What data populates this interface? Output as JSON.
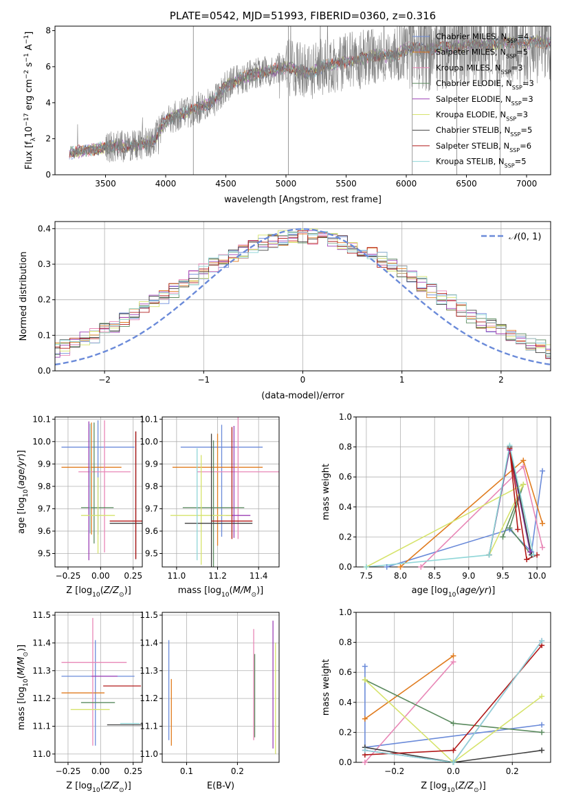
{
  "colors": [
    "#6a8ad9",
    "#e07b1e",
    "#e886b6",
    "#5a8a5e",
    "#9b3fb5",
    "#d6e36b",
    "#3f3f3f",
    "#b01818",
    "#8fd6d8"
  ],
  "spectrum_color": "#808080",
  "chart_data": [
    {
      "id": "spectrum",
      "type": "line",
      "title": "PLATE=0542, MJD=51993, FIBERID=0360, z=0.316",
      "xlabel": "wavelength [Angstrom, rest frame]",
      "ylabel": "Flux [f_λ10^-17 erg cm^-2 s^-1 A^-1]",
      "xlim": [
        3080,
        7200
      ],
      "ylim": [
        0,
        8.25
      ],
      "xticks": [
        3500,
        4000,
        4500,
        5000,
        5500,
        6000,
        6500,
        7000
      ],
      "yticks": [
        0,
        2,
        4,
        6,
        8
      ],
      "grid": false,
      "legend_position": "top-right",
      "legend": [
        "Chabrier MILES, N_SSP=4",
        "Salpeter MILES, N_SSP=5",
        "Kroupa MILES, N_SSP=3",
        "Chabrier ELODIE, N_SSP=3",
        "Salpeter ELODIE, N_SSP=3",
        "Kroupa ELODIE, N_SSP=3",
        "Chabrier STELIB, N_SSP=5",
        "Salpeter STELIB, N_SSP=6",
        "Kroupa STELIB, N_SSP=5"
      ],
      "continuum": {
        "x": [
          3200,
          3400,
          3500,
          3700,
          3800,
          3900,
          4000,
          4100,
          4200,
          4300,
          4400,
          4500,
          4600,
          4700,
          4800,
          4900,
          5000,
          5100,
          5200,
          5300,
          5400,
          5500,
          5600,
          5700,
          5800,
          5900,
          6000,
          6100,
          6200,
          6300,
          6400,
          6500,
          6600,
          6700,
          6800,
          6900,
          7000,
          7100,
          7200
        ],
        "y": [
          1.2,
          1.4,
          1.55,
          1.6,
          1.7,
          1.9,
          3.0,
          3.3,
          3.5,
          3.8,
          4.1,
          4.9,
          5.3,
          5.5,
          5.7,
          5.8,
          6.0,
          5.8,
          5.6,
          6.0,
          6.1,
          6.3,
          6.4,
          6.6,
          6.6,
          6.6,
          7.0,
          7.0,
          7.0,
          7.1,
          7.1,
          7.2,
          7.2,
          7.2,
          7.3,
          7.4,
          7.3,
          7.4,
          7.3
        ]
      }
    },
    {
      "id": "residuals",
      "type": "histogram",
      "xlabel": "(data-model)/error",
      "ylabel": "Normed distribution",
      "xlim": [
        -2.5,
        2.5
      ],
      "ylim": [
        0,
        0.42
      ],
      "xticks": [
        -2,
        -1,
        0,
        1,
        2
      ],
      "yticks": [
        0.0,
        0.1,
        0.2,
        0.3,
        0.4
      ],
      "grid": true,
      "legend_position": "top-right",
      "legend": [
        "N(0,1)"
      ],
      "bin_width": 0.1,
      "reference": "normal(0,1)"
    },
    {
      "id": "age-vs-Z",
      "type": "errorbar",
      "xlabel": "Z [log10(Z/Z☉)]",
      "ylabel": "age  [log10(age/yr)]",
      "xlim": [
        -0.35,
        0.32
      ],
      "ylim": [
        9.44,
        10.11
      ],
      "xticks": [
        -0.25,
        0.0,
        0.25
      ],
      "yticks": [
        9.5,
        9.6,
        9.7,
        9.8,
        9.9,
        10.0,
        10.1
      ],
      "grid": true,
      "points": [
        {
          "x": -0.02,
          "xerr": [
            0.28,
            0.28
          ],
          "y": 9.975,
          "yerr": [
            0.39,
            0.12
          ]
        },
        {
          "x": -0.07,
          "xerr": [
            0.23,
            0.23
          ],
          "y": 9.885,
          "yerr": [
            0.3,
            0.2
          ]
        },
        {
          "x": 0.03,
          "xerr": [
            0.2,
            0.2
          ],
          "y": 9.865,
          "yerr": [
            0.36,
            0.23
          ]
        },
        {
          "x": -0.05,
          "xerr": [
            0.1,
            0.15
          ],
          "y": 9.705,
          "yerr": [
            0.16,
            0.38
          ]
        },
        {
          "x": -0.09,
          "xerr": [
            0.0,
            0.0
          ],
          "y": 9.67,
          "yerr": [
            0.2,
            0.42
          ]
        },
        {
          "x": -0.02,
          "xerr": [
            0.13,
            0.13
          ],
          "y": 9.67,
          "yerr": [
            0.17,
            0.17
          ]
        },
        {
          "x": 0.27,
          "xerr": [
            0.2,
            0.2
          ],
          "y": 9.635,
          "yerr": [
            0.16,
            0.41
          ]
        },
        {
          "x": 0.27,
          "xerr": [
            0.2,
            0.2
          ],
          "y": 9.645,
          "yerr": [
            0.17,
            0.4
          ]
        },
        {
          "x": -0.08,
          "xerr": [
            0.0,
            0.0
          ],
          "y": 9.72,
          "yerr": [
            0.13,
            0.36
          ]
        }
      ]
    },
    {
      "id": "age-vs-mass",
      "type": "errorbar",
      "xlabel": "mass [log10(M/M☉)]",
      "ylabel": "",
      "xlim": [
        10.93,
        11.5
      ],
      "ylim": [
        9.44,
        10.11
      ],
      "xticks": [
        11.0,
        11.2,
        11.4
      ],
      "yticks": [
        9.5,
        9.6,
        9.7,
        9.8,
        9.9,
        10.0,
        10.1
      ],
      "grid": true,
      "points": [
        {
          "x": 11.22,
          "xerr": [
            0.2,
            0.2
          ],
          "y": 9.975,
          "yerr": [
            0.4,
            0.1
          ]
        },
        {
          "x": 11.2,
          "xerr": [
            0.22,
            0.22
          ],
          "y": 9.885,
          "yerr": [
            0.35,
            0.15
          ]
        },
        {
          "x": 11.3,
          "xerr": [
            0.2,
            0.2
          ],
          "y": 9.865,
          "yerr": [
            0.3,
            0.3
          ]
        },
        {
          "x": 11.18,
          "xerr": [
            0.15,
            0.15
          ],
          "y": 9.705,
          "yerr": [
            0.3,
            0.3
          ]
        },
        {
          "x": 11.28,
          "xerr": [
            0.04,
            0.08
          ],
          "y": 9.67,
          "yerr": [
            0.1,
            0.4
          ]
        },
        {
          "x": 11.12,
          "xerr": [
            0.15,
            0.15
          ],
          "y": 9.67,
          "yerr": [
            0.22,
            0.27
          ]
        },
        {
          "x": 11.17,
          "xerr": [
            0.13,
            0.2
          ],
          "y": 9.635,
          "yerr": [
            0.2,
            0.4
          ]
        },
        {
          "x": 11.27,
          "xerr": [
            0.1,
            0.1
          ],
          "y": 9.645,
          "yerr": [
            0.08,
            0.42
          ]
        },
        {
          "x": 11.1,
          "xerr": [
            0.0,
            0.0
          ],
          "y": 9.72,
          "yerr": [
            0.25,
            0.25
          ]
        }
      ]
    },
    {
      "id": "weight-vs-age",
      "type": "line",
      "xlabel": "age  [log10(age/yr)]",
      "ylabel": "mass weight",
      "xlim": [
        7.35,
        10.2
      ],
      "ylim": [
        0.0,
        1.0
      ],
      "xticks": [
        7.5,
        8.0,
        8.5,
        9.0,
        9.5,
        10.0
      ],
      "yticks": [
        0.0,
        0.2,
        0.4,
        0.6,
        0.8,
        1.0
      ],
      "grid": true,
      "series": [
        {
          "x": [
            7.8,
            9.6,
            9.92,
            10.08
          ],
          "y": [
            0.0,
            0.25,
            0.1,
            0.64
          ]
        },
        {
          "x": [
            8.0,
            9.8,
            10.08
          ],
          "y": [
            0.0,
            0.71,
            0.29
          ]
        },
        {
          "x": [
            8.3,
            9.8,
            10.08
          ],
          "y": [
            0.0,
            0.67,
            0.13
          ]
        },
        {
          "x": [
            9.5,
            9.8,
            9.6,
            9.92
          ],
          "y": [
            0.2,
            0.55,
            0.26,
            0.08
          ]
        },
        {
          "x": [
            9.3,
            9.6,
            9.9
          ],
          "y": [
            0.08,
            0.78,
            0.1
          ]
        },
        {
          "x": [
            7.5,
            9.8,
            9.3
          ],
          "y": [
            0.0,
            0.55,
            0.08
          ]
        },
        {
          "x": [
            9.3,
            9.6,
            9.92
          ],
          "y": [
            0.08,
            0.8,
            0.08
          ]
        },
        {
          "x": [
            9.72,
            9.6,
            9.85,
            10.0
          ],
          "y": [
            0.25,
            0.79,
            0.05,
            0.08
          ]
        },
        {
          "x": [
            7.5,
            9.3,
            9.6,
            9.95
          ],
          "y": [
            0.0,
            0.08,
            0.81,
            0.08
          ]
        }
      ]
    },
    {
      "id": "mass-vs-Z",
      "type": "errorbar",
      "xlabel": "Z [log10(Z/Z☉)]",
      "ylabel": "mass [log10(M/M☉)]",
      "xlim": [
        -0.35,
        0.32
      ],
      "ylim": [
        10.97,
        11.51
      ],
      "xticks": [
        -0.25,
        0.0,
        0.25
      ],
      "yticks": [
        11.0,
        11.1,
        11.2,
        11.3,
        11.4,
        11.5
      ],
      "grid": true,
      "points": [
        {
          "x": -0.04,
          "xerr": [
            0.26,
            0.3
          ],
          "y": 11.28,
          "yerr": [
            0.25,
            0.13
          ]
        },
        {
          "x": -0.12,
          "xerr": [
            0.18,
            0.15
          ],
          "y": 11.22,
          "yerr": [
            0.0,
            0.0
          ]
        },
        {
          "x": -0.06,
          "xerr": [
            0.24,
            0.26
          ],
          "y": 11.33,
          "yerr": [
            0.3,
            0.16
          ]
        },
        {
          "x": -0.02,
          "xerr": [
            0.13,
            0.13
          ],
          "y": 11.185,
          "yerr": [
            0.0,
            0.0
          ]
        },
        {
          "x": 0.03,
          "xerr": [
            0.1,
            0.1
          ],
          "y": 11.28,
          "yerr": [
            0.0,
            0.0
          ]
        },
        {
          "x": -0.08,
          "xerr": [
            0.15,
            0.15
          ],
          "y": 11.16,
          "yerr": [
            0.0,
            0.0
          ]
        },
        {
          "x": 0.25,
          "xerr": [
            0.2,
            0.2
          ],
          "y": 11.105,
          "yerr": [
            0.0,
            0.0
          ]
        },
        {
          "x": 0.14,
          "xerr": [
            0.12,
            0.17
          ],
          "y": 11.245,
          "yerr": [
            0.0,
            0.0
          ]
        },
        {
          "x": 0.25,
          "xerr": [
            0.1,
            0.05
          ],
          "y": 11.11,
          "yerr": [
            0.0,
            0.0
          ]
        }
      ]
    },
    {
      "id": "mass-vs-EBV",
      "type": "errorbar",
      "xlabel": "E(B-V)",
      "ylabel": "",
      "xlim": [
        0.052,
        0.282
      ],
      "ylim": [
        10.97,
        11.51
      ],
      "xticks": [
        0.1,
        0.2
      ],
      "yticks": [
        11.0,
        11.1,
        11.2,
        11.3,
        11.4,
        11.5
      ],
      "grid": true,
      "points": [
        {
          "x": 0.065,
          "y": 11.23,
          "yerr": [
            0.18,
            0.18
          ]
        },
        {
          "x": 0.07,
          "y": 11.15,
          "yerr": [
            0.12,
            0.12
          ]
        },
        {
          "x": 0.232,
          "y": 11.25,
          "yerr": [
            0.2,
            0.2
          ]
        },
        {
          "x": 0.234,
          "y": 11.21,
          "yerr": [
            0.15,
            0.15
          ]
        },
        {
          "x": 0.27,
          "y": 11.25,
          "yerr": [
            0.23,
            0.23
          ]
        },
        {
          "x": 0.275,
          "y": 11.2,
          "yerr": [
            0.2,
            0.2
          ]
        }
      ]
    },
    {
      "id": "weight-vs-Z",
      "type": "line",
      "xlabel": "Z [log10(Z/Z☉)]",
      "ylabel": "mass weight",
      "xlim": [
        -0.33,
        0.33
      ],
      "ylim": [
        0.0,
        1.0
      ],
      "xticks": [
        -0.2,
        0.0,
        0.2
      ],
      "yticks": [
        0.0,
        0.2,
        0.4,
        0.6,
        0.8,
        1.0
      ],
      "grid": true,
      "series": [
        {
          "x": [
            -0.3,
            -0.3,
            0.3
          ],
          "y": [
            0.64,
            0.1,
            0.25
          ]
        },
        {
          "x": [
            -0.3,
            0.0
          ],
          "y": [
            0.29,
            0.71
          ]
        },
        {
          "x": [
            -0.3,
            0.0
          ],
          "y": [
            0.0,
            0.67
          ]
        },
        {
          "x": [
            -0.3,
            0.0,
            0.3
          ],
          "y": [
            0.55,
            0.26,
            0.2
          ]
        },
        {
          "x": [
            -0.3,
            0.0,
            0.3
          ],
          "y": [
            0.08,
            0.0,
            0.81
          ]
        },
        {
          "x": [
            -0.3,
            0.0,
            0.3
          ],
          "y": [
            0.55,
            0.0,
            0.44
          ]
        },
        {
          "x": [
            -0.3,
            0.0,
            0.3
          ],
          "y": [
            0.1,
            0.0,
            0.08
          ]
        },
        {
          "x": [
            -0.3,
            0.0,
            0.3
          ],
          "y": [
            0.05,
            0.08,
            0.78
          ]
        },
        {
          "x": [
            -0.3,
            0.0,
            0.3
          ],
          "y": [
            0.08,
            0.0,
            0.81
          ]
        }
      ]
    }
  ]
}
